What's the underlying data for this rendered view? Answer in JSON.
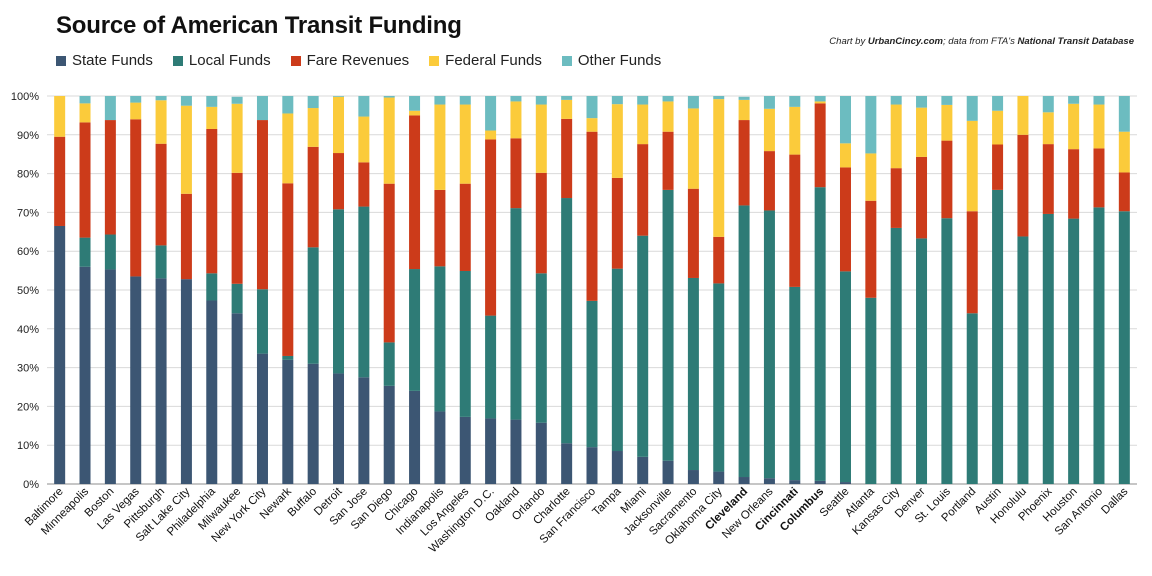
{
  "chart_data": {
    "type": "bar",
    "stacked": true,
    "title": "Source of American Transit Funding",
    "credit": {
      "prefix": "Chart by ",
      "site": "UrbanCincy.com",
      "middle": "; data from FTA's ",
      "source": "National Transit Database"
    },
    "ylim": [
      0,
      100
    ],
    "yticks": [
      "0%",
      "10%",
      "20%",
      "30%",
      "40%",
      "50%",
      "60%",
      "70%",
      "80%",
      "90%",
      "100%"
    ],
    "grid": true,
    "legend_position": "top-left",
    "categories": [
      "Baltimore",
      "Minneapolis",
      "Boston",
      "Las Vegas",
      "Pittsburgh",
      "Salt Lake City",
      "Philadelphia",
      "Milwaukee",
      "New York City",
      "Newark",
      "Buffalo",
      "Detroit",
      "San Jose",
      "San Diego",
      "Chicago",
      "Indianapolis",
      "Los Angeles",
      "Washington D.C.",
      "Oakland",
      "Orlando",
      "Charlotte",
      "San Francisco",
      "Tampa",
      "Miami",
      "Jacksonville",
      "Sacramento",
      "Oklahoma City",
      "Cleveland",
      "New Orleans",
      "Cincinnati",
      "Columbus",
      "Seattle",
      "Atlanta",
      "Kansas City",
      "Denver",
      "St. Louis",
      "Portland",
      "Austin",
      "Honolulu",
      "Phoenix",
      "Houston",
      "San Antonio",
      "Dallas"
    ],
    "bold_categories": [
      "Cleveland",
      "Cincinnati",
      "Columbus"
    ],
    "series": [
      {
        "name": "State Funds",
        "color": "#3c5673",
        "values": [
          66.5,
          56,
          55.3,
          53.5,
          53,
          52.8,
          47.3,
          44,
          33.6,
          32,
          31,
          28.5,
          27.5,
          25.3,
          24,
          18.7,
          17.3,
          16.9,
          16.6,
          15.8,
          10.5,
          9.5,
          8.5,
          7,
          6,
          3.6,
          3.2,
          1.8,
          1.5,
          1,
          0.8,
          0.5,
          0,
          0,
          0,
          0,
          0,
          0,
          0,
          0,
          0,
          0,
          0
        ]
      },
      {
        "name": "Local Funds",
        "color": "#2e7b76",
        "values": [
          0,
          7.5,
          9,
          0,
          8.5,
          0,
          7,
          7.6,
          16.6,
          1,
          30,
          42.3,
          44,
          11.2,
          31.4,
          37.4,
          37.6,
          26.5,
          54.5,
          38.5,
          63.2,
          37.7,
          47,
          57,
          69.8,
          49.5,
          48.5,
          70,
          69,
          49.8,
          75.7,
          54.3,
          48,
          66,
          63.3,
          68.5,
          44,
          75.8,
          63.8,
          69.6,
          68.4,
          71.3,
          70.3
        ]
      },
      {
        "name": "Fare Revenues",
        "color": "#cc3b1a",
        "values": [
          23,
          29.7,
          29.5,
          40.5,
          26.2,
          22,
          37.2,
          28.6,
          43.6,
          44.5,
          25.9,
          14.5,
          11.4,
          40.9,
          39.6,
          19.7,
          22.5,
          45.4,
          18,
          25.9,
          20.4,
          43.6,
          23.4,
          23.6,
          15,
          23,
          12,
          22,
          15.3,
          34.1,
          21.6,
          26.8,
          25,
          15.4,
          21,
          20,
          26.3,
          11.7,
          26.2,
          18,
          17.9,
          15.2,
          10
        ]
      },
      {
        "name": "Federal Funds",
        "color": "#fbcb3b",
        "values": [
          10.5,
          4.9,
          0,
          4.3,
          11.2,
          22.7,
          5.7,
          17.8,
          0,
          18,
          10,
          14.5,
          11.8,
          22.2,
          1.2,
          22,
          20.4,
          2.3,
          9.5,
          17.6,
          4.9,
          3.5,
          19,
          10.2,
          7.8,
          20.7,
          35.5,
          5.2,
          10.9,
          12.3,
          0.5,
          6.2,
          12.2,
          16.4,
          12.7,
          9.2,
          23.3,
          8.7,
          10,
          8.2,
          11.7,
          11.3,
          10.5
        ]
      },
      {
        "name": "Other Funds",
        "color": "#6cbcc0",
        "values": [
          0,
          1.9,
          6.2,
          1.7,
          1.1,
          2.5,
          2.8,
          1.8,
          6.2,
          4.5,
          3.1,
          0.2,
          5.3,
          0.4,
          3.8,
          2.2,
          2.2,
          8.9,
          1.4,
          2.2,
          1,
          5.7,
          2.1,
          2.2,
          1.4,
          3.2,
          0.8,
          0.8,
          3.3,
          2.8,
          1.4,
          12.2,
          14.8,
          2.2,
          3,
          2.3,
          6.4,
          3.8,
          0,
          4.2,
          2,
          2.2,
          9.2
        ]
      }
    ]
  }
}
